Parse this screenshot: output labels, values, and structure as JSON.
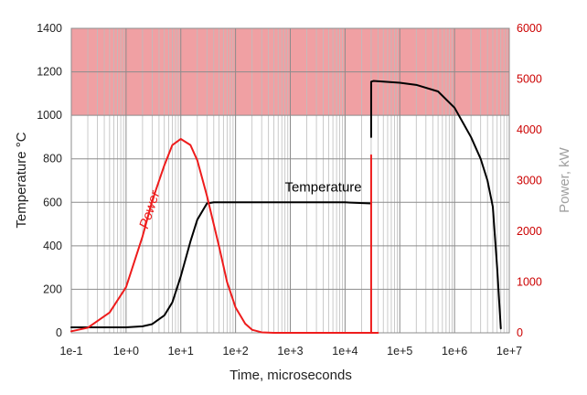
{
  "chart_data": {
    "type": "line",
    "xlabel": "Time, microseconds",
    "ylabel_left": "Temperature °C",
    "ylabel_right": "Power, kW",
    "x_scale": "log",
    "xlim": [
      0.1,
      10000000
    ],
    "ylim_left": [
      0,
      1400
    ],
    "ylim_right": [
      0,
      6000
    ],
    "x_tick_values": [
      0.1,
      1,
      10,
      100,
      1000,
      10000,
      100000,
      1000000,
      10000000
    ],
    "x_tick_labels": [
      "1e-1",
      "1e+0",
      "1e+1",
      "1e+2",
      "1e+3",
      "1e+4",
      "1e+5",
      "1e+6",
      "1e+7"
    ],
    "y_left_ticks": [
      0,
      200,
      400,
      600,
      800,
      1000,
      1200,
      1400
    ],
    "y_right_ticks": [
      0,
      1000,
      2000,
      3000,
      4000,
      5000,
      6000
    ],
    "grid": true,
    "shaded_band": {
      "axis": "left",
      "from": 1000,
      "to": 1400,
      "color": "#f0a0a3"
    },
    "series": [
      {
        "name": "Temperature",
        "axis": "left",
        "color": "#000000",
        "x": [
          0.1,
          0.3,
          1,
          2,
          3,
          5,
          7,
          10,
          15,
          20,
          30,
          40,
          50,
          100,
          1000,
          10000,
          30000
        ],
        "y": [
          25,
          25,
          25,
          30,
          40,
          80,
          140,
          260,
          420,
          520,
          595,
          600,
          600,
          600,
          600,
          600,
          595
        ]
      },
      {
        "name": "Power",
        "axis": "right",
        "color": "#ee1c1c",
        "x": [
          0.1,
          0.2,
          0.5,
          1,
          2,
          3,
          5,
          7,
          10,
          15,
          20,
          30,
          50,
          70,
          100,
          150,
          200,
          300,
          500,
          1000,
          10000,
          30000,
          30000,
          30001,
          30001,
          40000
        ],
        "y": [
          30,
          100,
          400,
          900,
          1900,
          2600,
          3300,
          3700,
          3820,
          3700,
          3400,
          2700,
          1700,
          1000,
          500,
          180,
          60,
          10,
          0,
          0,
          0,
          0,
          3500,
          3500,
          0,
          0
        ]
      },
      {
        "name": "",
        "axis": "left",
        "color": "#000000",
        "x": [
          30000,
          30000,
          33000,
          50000,
          100000,
          200000,
          500000,
          1000000,
          2000000,
          3000000,
          4000000,
          5000000,
          6000000,
          7000000
        ],
        "y": [
          900,
          1155,
          1158,
          1155,
          1150,
          1140,
          1110,
          1035,
          900,
          800,
          700,
          580,
          300,
          20
        ]
      }
    ],
    "annotations": [
      {
        "text": "Power",
        "x": 3.2,
        "y_left": 560,
        "rotate": -72,
        "color": "#ee1c1c"
      },
      {
        "text": "Temperature",
        "x": 4000,
        "y_left": 650,
        "rotate": 0,
        "color": "#000000"
      }
    ]
  },
  "colors": {
    "temperature": "#000000",
    "power": "#ee1c1c",
    "right_axis_ticks": "#cc0000",
    "right_axis_title": "#a0a0a0",
    "major_grid": "#8c8c8c",
    "minor_grid": "#bdbdbd",
    "band": "#f0a0a3"
  }
}
